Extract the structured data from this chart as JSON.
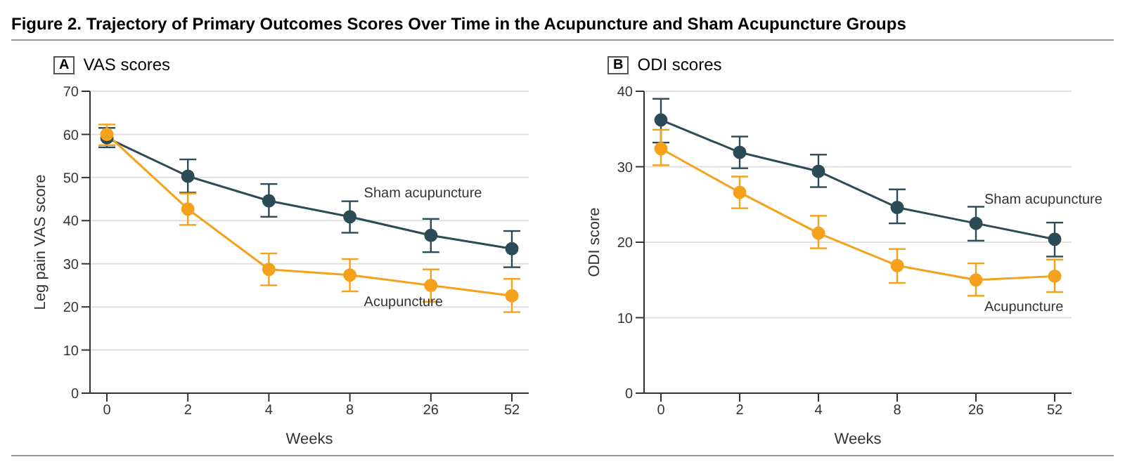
{
  "chart_data": [
    {
      "type": "line",
      "title": "VAS scores",
      "xlabel": "Weeks",
      "ylabel": "Leg pain VAS score",
      "annotations": [
        "Figure 2. Trajectory of Primary Outcomes Scores Over Time in the Acupuncture and Sham Acupuncture Groups",
        "A"
      ],
      "categories": [
        "0",
        "2",
        "4",
        "8",
        "26",
        "52"
      ],
      "ylim": [
        0,
        70
      ],
      "yticks": [
        0,
        10,
        20,
        30,
        40,
        50,
        60,
        70
      ],
      "grid": "y",
      "marker": "circle",
      "legend": false,
      "series": [
        {
          "name": "Sham acupuncture",
          "color": "#2b4b56",
          "values": [
            59.2,
            50.3,
            44.6,
            40.9,
            36.6,
            33.5
          ],
          "errors": [
            [
              57,
              61.5
            ],
            [
              46.5,
              54.2
            ],
            [
              40.9,
              48.5
            ],
            [
              37.2,
              44.5
            ],
            [
              32.7,
              40.4
            ],
            [
              29.2,
              37.6
            ]
          ]
        },
        {
          "name": "Acupuncture",
          "color": "#f5a11c",
          "values": [
            60,
            42.7,
            28.7,
            27.4,
            25,
            22.6
          ],
          "errors": [
            [
              57.5,
              62.3
            ],
            [
              39,
              46.3
            ],
            [
              25,
              32.4
            ],
            [
              23.6,
              31.1
            ],
            [
              21.2,
              28.7
            ],
            [
              18.8,
              26.5
            ]
          ]
        }
      ]
    },
    {
      "type": "line",
      "title": "ODI scores",
      "xlabel": "Weeks",
      "ylabel": "ODI score",
      "annotations": [
        "B"
      ],
      "categories": [
        "0",
        "2",
        "4",
        "8",
        "26",
        "52"
      ],
      "ylim": [
        0,
        40
      ],
      "yticks": [
        0,
        10,
        20,
        30,
        40
      ],
      "grid": "y",
      "marker": "circle",
      "legend": false,
      "series": [
        {
          "name": "Sham acupuncture",
          "color": "#2b4b56",
          "values": [
            36.2,
            31.9,
            29.4,
            24.6,
            22.5,
            20.4
          ],
          "errors": [
            [
              33.2,
              39
            ],
            [
              29.8,
              34
            ],
            [
              27.3,
              31.6
            ],
            [
              22.5,
              27
            ],
            [
              20.2,
              24.7
            ],
            [
              18.1,
              22.6
            ]
          ]
        },
        {
          "name": "Acupuncture",
          "color": "#f5a11c",
          "values": [
            32.4,
            26.6,
            21.2,
            16.9,
            15,
            15.5
          ],
          "errors": [
            [
              30.2,
              34.9
            ],
            [
              24.5,
              28.7
            ],
            [
              19.2,
              23.5
            ],
            [
              14.6,
              19.1
            ],
            [
              12.9,
              17.2
            ],
            [
              13.4,
              17.7
            ]
          ]
        }
      ]
    }
  ]
}
